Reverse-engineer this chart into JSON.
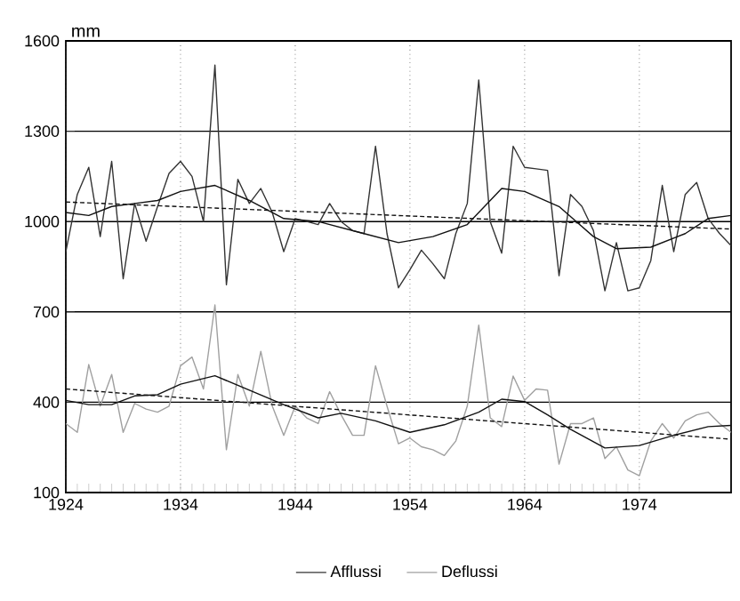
{
  "chart_data": {
    "type": "line",
    "ylabel": "mm",
    "x": [
      1924,
      1925,
      1926,
      1927,
      1928,
      1929,
      1930,
      1931,
      1932,
      1933,
      1934,
      1935,
      1936,
      1937,
      1938,
      1939,
      1940,
      1941,
      1942,
      1943,
      1944,
      1945,
      1946,
      1947,
      1948,
      1949,
      1950,
      1951,
      1952,
      1953,
      1954,
      1955,
      1956,
      1957,
      1958,
      1959,
      1960,
      1961,
      1962,
      1963,
      1964,
      1965,
      1966,
      1967,
      1968,
      1969,
      1970,
      1971,
      1972,
      1973,
      1974,
      1975,
      1976,
      1977,
      1978,
      1979,
      1980,
      1981,
      1982
    ],
    "series": [
      {
        "name": "Afflussi",
        "color": "#333333",
        "values": [
          900,
          1090,
          1180,
          950,
          1200,
          810,
          1060,
          935,
          1050,
          1160,
          1200,
          1150,
          1000,
          1520,
          790,
          1140,
          1060,
          1110,
          1030,
          900,
          1010,
          1000,
          990,
          1060,
          1000,
          970,
          960,
          1250,
          960,
          780,
          840,
          905,
          860,
          810,
          960,
          1060,
          1470,
          1000,
          895,
          1250,
          1180,
          1175,
          1170,
          820,
          1090,
          1050,
          970,
          770,
          930,
          770,
          780,
          870,
          1120,
          900,
          1090,
          1130,
          1010,
          960,
          920
        ]
      },
      {
        "name": "Deflussi",
        "color": "#a0a0a0",
        "values": [
          329,
          300,
          525,
          387,
          492,
          300,
          396,
          377,
          367,
          387,
          521,
          550,
          444,
          723,
          242,
          492,
          387,
          569,
          387,
          290,
          387,
          348,
          329,
          435,
          358,
          290,
          290,
          521,
          387,
          262,
          281,
          252,
          242,
          223,
          271,
          387,
          656,
          348,
          319,
          487,
          406,
          444,
          440,
          194,
          329,
          329,
          348,
          213,
          252,
          175,
          156,
          271,
          329,
          281,
          338,
          358,
          367,
          329,
          300
        ]
      },
      {
        "color": "#111111",
        "x": [
          1924,
          1926,
          1928,
          1930,
          1932,
          1934,
          1937,
          1940,
          1943,
          1946,
          1950,
          1953,
          1956,
          1959,
          1962,
          1964,
          1967,
          1970,
          1972,
          1975,
          1978,
          1980,
          1982
        ],
        "values": [
          1030,
          1020,
          1050,
          1060,
          1070,
          1100,
          1120,
          1070,
          1010,
          1000,
          960,
          930,
          950,
          990,
          1110,
          1100,
          1050,
          950,
          910,
          915,
          960,
          1010,
          1020
        ]
      },
      {
        "color": "#111111",
        "x": [
          1924,
          1926,
          1928,
          1930,
          1932,
          1934,
          1937,
          1940,
          1943,
          1946,
          1948,
          1951,
          1954,
          1957,
          1960,
          1962,
          1964,
          1966,
          1968,
          1971,
          1974,
          1977,
          1980,
          1982
        ],
        "values": [
          406,
          392,
          392,
          421,
          425,
          460,
          488,
          440,
          392,
          348,
          363,
          338,
          300,
          325,
          367,
          410,
          402,
          358,
          310,
          248,
          256,
          290,
          319,
          323
        ]
      },
      {
        "color": "#111111",
        "line_style": "dashed",
        "x": [
          1924,
          1982
        ],
        "values": [
          1065,
          975
        ]
      },
      {
        "color": "#111111",
        "line_style": "dashed",
        "x": [
          1924,
          1982
        ],
        "values": [
          444,
          277
        ]
      }
    ],
    "xlim": [
      1924,
      1982
    ],
    "ylim": [
      100,
      1600
    ],
    "xticks": [
      1924,
      1934,
      1944,
      1954,
      1964,
      1974
    ],
    "yticks": [
      100,
      400,
      700,
      1000,
      1300,
      1600
    ],
    "grid": true,
    "legend": "bottom",
    "marker": "none",
    "line_style": "solid"
  }
}
